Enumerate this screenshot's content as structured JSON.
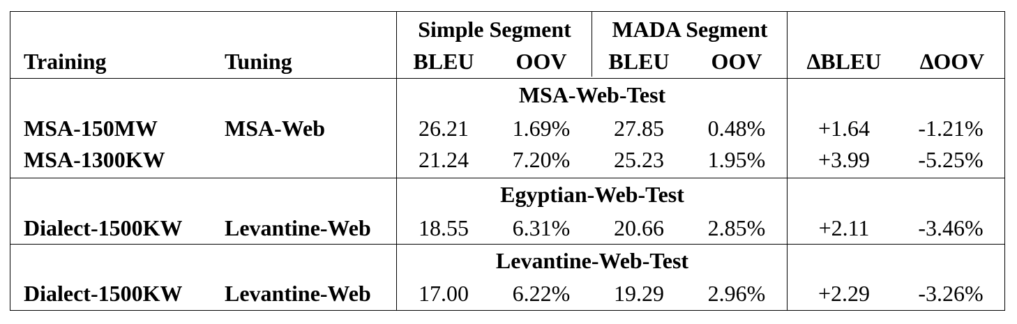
{
  "header": {
    "training": "Training",
    "tuning": "Tuning",
    "simple_segment": "Simple Segment",
    "mada_segment": "MADA Segment",
    "bleu1": "BLEU",
    "oov1": "OOV",
    "bleu2": "BLEU",
    "oov2": "OOV",
    "delta_bleu": "∆BLEU",
    "delta_oov": "∆OOV"
  },
  "sections": [
    {
      "title": "MSA-Web-Test",
      "rows": [
        {
          "training": "MSA-150MW",
          "tuning": "MSA-Web",
          "s_bleu": "26.21",
          "s_oov": "1.69%",
          "m_bleu": "27.85",
          "m_oov": "0.48%",
          "d_bleu": "+1.64",
          "d_oov": "-1.21%"
        },
        {
          "training": "MSA-1300KW",
          "tuning": "",
          "s_bleu": "21.24",
          "s_oov": "7.20%",
          "m_bleu": "25.23",
          "m_oov": "1.95%",
          "d_bleu": "+3.99",
          "d_oov": "-5.25%"
        }
      ]
    },
    {
      "title": "Egyptian-Web-Test",
      "rows": [
        {
          "training": "Dialect-1500KW",
          "tuning": "Levantine-Web",
          "s_bleu": "18.55",
          "s_oov": "6.31%",
          "m_bleu": "20.66",
          "m_oov": "2.85%",
          "d_bleu": "+2.11",
          "d_oov": "-3.46%"
        }
      ]
    },
    {
      "title": "Levantine-Web-Test",
      "rows": [
        {
          "training": "Dialect-1500KW",
          "tuning": "Levantine-Web",
          "s_bleu": "17.00",
          "s_oov": "6.22%",
          "m_bleu": "19.29",
          "m_oov": "2.96%",
          "d_bleu": "+2.29",
          "d_oov": "-3.26%"
        }
      ]
    }
  ]
}
